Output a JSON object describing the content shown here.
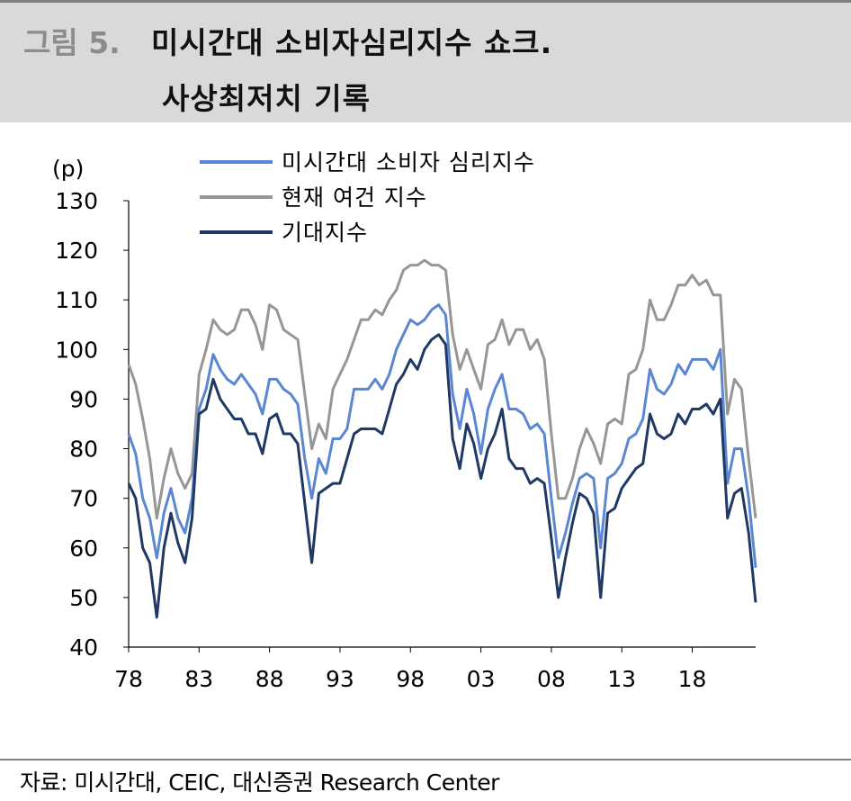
{
  "header": {
    "figure_no": "그림 5.",
    "title_line1": "미시간대 소비자심리지수 쇼크.",
    "title_line2": "사상최저치 기록"
  },
  "source": "자료: 미시간대, CEIC, 대신증권 Research Center",
  "colors": {
    "sentiment": "#5b87d2",
    "current": "#969696",
    "expectations": "#1f3864"
  },
  "chart_data": {
    "type": "line",
    "unit_label": "(p)",
    "ylim": [
      40,
      130
    ],
    "yticks": [
      "130",
      "120",
      "110",
      "100",
      "90",
      "80",
      "70",
      "60",
      "50",
      "40"
    ],
    "xlim": [
      1978,
      2022.5
    ],
    "xticks": [
      {
        "label": "78",
        "year": 1978
      },
      {
        "label": "83",
        "year": 1983
      },
      {
        "label": "88",
        "year": 1988
      },
      {
        "label": "93",
        "year": 1993
      },
      {
        "label": "98",
        "year": 1998
      },
      {
        "label": "03",
        "year": 2003
      },
      {
        "label": "08",
        "year": 2008
      },
      {
        "label": "13",
        "year": 2013
      },
      {
        "label": "18",
        "year": 2018
      }
    ],
    "legend_position": "top-center",
    "x": [
      1978.0,
      1978.5,
      1979.0,
      1979.5,
      1980.0,
      1980.5,
      1981.0,
      1981.5,
      1982.0,
      1982.5,
      1983.0,
      1983.5,
      1984.0,
      1984.5,
      1985.0,
      1985.5,
      1986.0,
      1986.5,
      1987.0,
      1987.5,
      1988.0,
      1988.5,
      1989.0,
      1989.5,
      1990.0,
      1990.5,
      1991.0,
      1991.5,
      1992.0,
      1992.5,
      1993.0,
      1993.5,
      1994.0,
      1994.5,
      1995.0,
      1995.5,
      1996.0,
      1996.5,
      1997.0,
      1997.5,
      1998.0,
      1998.5,
      1999.0,
      1999.5,
      2000.0,
      2000.5,
      2001.0,
      2001.5,
      2002.0,
      2002.5,
      2003.0,
      2003.5,
      2004.0,
      2004.5,
      2005.0,
      2005.5,
      2006.0,
      2006.5,
      2007.0,
      2007.5,
      2008.0,
      2008.5,
      2009.0,
      2009.5,
      2010.0,
      2010.5,
      2011.0,
      2011.5,
      2012.0,
      2012.5,
      2013.0,
      2013.5,
      2014.0,
      2014.5,
      2015.0,
      2015.5,
      2016.0,
      2016.5,
      2017.0,
      2017.5,
      2018.0,
      2018.5,
      2019.0,
      2019.5,
      2020.0,
      2020.5,
      2021.0,
      2021.5,
      2022.0,
      2022.5
    ],
    "series": [
      {
        "name": "미시간대 소비자 심리지수",
        "values": [
          83,
          79,
          70,
          66,
          58,
          67,
          72,
          66,
          63,
          70,
          88,
          92,
          99,
          96,
          94,
          93,
          95,
          93,
          91,
          87,
          94,
          94,
          92,
          91,
          89,
          78,
          70,
          78,
          75,
          82,
          82,
          84,
          92,
          92,
          92,
          94,
          92,
          95,
          100,
          103,
          106,
          105,
          106,
          108,
          109,
          107,
          91,
          84,
          92,
          87,
          79,
          88,
          92,
          95,
          88,
          88,
          87,
          84,
          85,
          83,
          70,
          58,
          63,
          69,
          74,
          75,
          74,
          60,
          74,
          75,
          77,
          82,
          83,
          86,
          96,
          92,
          91,
          93,
          97,
          95,
          98,
          98,
          98,
          96,
          100,
          73,
          80,
          80,
          70,
          56
        ]
      },
      {
        "name": "현재 여건 지수",
        "values": [
          97,
          93,
          86,
          78,
          66,
          74,
          80,
          75,
          72,
          75,
          95,
          100,
          106,
          104,
          103,
          104,
          108,
          108,
          105,
          100,
          109,
          108,
          104,
          103,
          102,
          91,
          80,
          85,
          82,
          92,
          95,
          98,
          102,
          106,
          106,
          108,
          107,
          110,
          112,
          116,
          117,
          117,
          118,
          117,
          117,
          116,
          103,
          96,
          100,
          96,
          92,
          101,
          102,
          106,
          101,
          104,
          104,
          100,
          102,
          98,
          83,
          70,
          70,
          74,
          80,
          84,
          81,
          77,
          85,
          86,
          85,
          95,
          96,
          100,
          110,
          106,
          106,
          109,
          113,
          113,
          115,
          113,
          114,
          111,
          111,
          87,
          94,
          92,
          78,
          66
        ]
      },
      {
        "name": "기대지수",
        "values": [
          73,
          70,
          60,
          57,
          46,
          60,
          67,
          61,
          57,
          66,
          87,
          88,
          94,
          90,
          88,
          86,
          86,
          83,
          83,
          79,
          86,
          87,
          83,
          83,
          81,
          69,
          57,
          71,
          72,
          73,
          73,
          78,
          83,
          84,
          84,
          84,
          83,
          88,
          93,
          95,
          98,
          96,
          100,
          102,
          103,
          101,
          82,
          76,
          85,
          81,
          74,
          80,
          83,
          88,
          78,
          76,
          76,
          73,
          74,
          73,
          62,
          50,
          58,
          65,
          71,
          70,
          67,
          50,
          67,
          68,
          72,
          74,
          76,
          77,
          87,
          83,
          82,
          83,
          87,
          85,
          88,
          88,
          89,
          87,
          90,
          66,
          71,
          72,
          63,
          49
        ]
      }
    ]
  }
}
